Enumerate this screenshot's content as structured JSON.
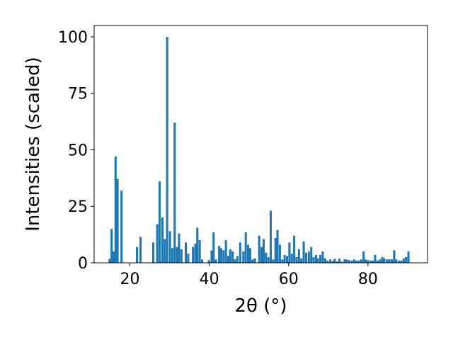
{
  "chart_data": {
    "type": "bar",
    "title": "",
    "xlabel": "2θ (°)",
    "ylabel": "Intensities (scaled)",
    "xlim": [
      11,
      95
    ],
    "ylim": [
      0,
      105
    ],
    "xticks": [
      20,
      40,
      60,
      80
    ],
    "yticks": [
      0,
      25,
      50,
      75,
      100
    ],
    "grid": false,
    "bar_color": "#1f77b4",
    "bar_width": 0.55,
    "x": [
      14.9,
      15.4,
      15.9,
      16.4,
      16.9,
      17.9,
      21.8,
      22.7,
      25.9,
      26.9,
      27.5,
      28.2,
      28.8,
      29.4,
      30.1,
      30.7,
      31.3,
      31.9,
      32.4,
      33.0,
      34.1,
      34.7,
      35.9,
      36.5,
      37.0,
      37.6,
      38.2,
      39.9,
      40.6,
      41.1,
      41.7,
      42.5,
      43.0,
      43.6,
      44.2,
      44.8,
      45.3,
      45.9,
      46.5,
      47.1,
      47.8,
      48.6,
      49.2,
      49.8,
      50.3,
      50.9,
      51.5,
      52.6,
      53.2,
      53.7,
      54.3,
      54.9,
      55.5,
      56.1,
      56.7,
      57.2,
      57.8,
      58.4,
      59.0,
      59.6,
      60.2,
      60.8,
      61.4,
      62.0,
      62.6,
      63.2,
      63.8,
      64.4,
      65.1,
      65.7,
      66.3,
      66.9,
      67.4,
      68.0,
      68.6,
      69.2,
      69.8,
      70.5,
      71.1,
      71.6,
      72.2,
      72.8,
      73.4,
      74.1,
      74.6,
      75.2,
      75.9,
      76.5,
      77.1,
      77.7,
      78.3,
      78.9,
      79.4,
      80.0,
      80.7,
      81.2,
      81.8,
      82.4,
      83.0,
      83.6,
      84.1,
      84.8,
      85.4,
      86.0,
      86.6,
      87.1,
      87.8,
      88.4,
      89.0,
      89.6,
      90.2
    ],
    "values": [
      1.8,
      15,
      5,
      47,
      37,
      32,
      7,
      11.5,
      9,
      17,
      36,
      20,
      10.5,
      100,
      14,
      6.5,
      62,
      7,
      13,
      6,
      9,
      4,
      7,
      8.5,
      15.5,
      10,
      1.5,
      1.2,
      5.5,
      13.5,
      1.5,
      7.5,
      6.5,
      5.5,
      10,
      3,
      6,
      5,
      1.5,
      3,
      9,
      5,
      13.5,
      8,
      6.5,
      1.5,
      2,
      12,
      7,
      10.5,
      4.5,
      2.5,
      23,
      1.5,
      11,
      14.5,
      8,
      1.5,
      3.5,
      3,
      9,
      4,
      12,
      2.5,
      6,
      2,
      9.5,
      4.5,
      5,
      7,
      2.5,
      3.5,
      2,
      3.5,
      5,
      2,
      1,
      1.5,
      0.8,
      1.8,
      0.6,
      1.8,
      0.5,
      1.5,
      1.5,
      1.2,
      1,
      1.5,
      1,
      1,
      1.5,
      5,
      1.5,
      1.2,
      1,
      1,
      3.5,
      1,
      1.5,
      2.5,
      2,
      1.5,
      1.5,
      1.5,
      5.5,
      1.5,
      1,
      1,
      2,
      2.5,
      5
    ]
  }
}
